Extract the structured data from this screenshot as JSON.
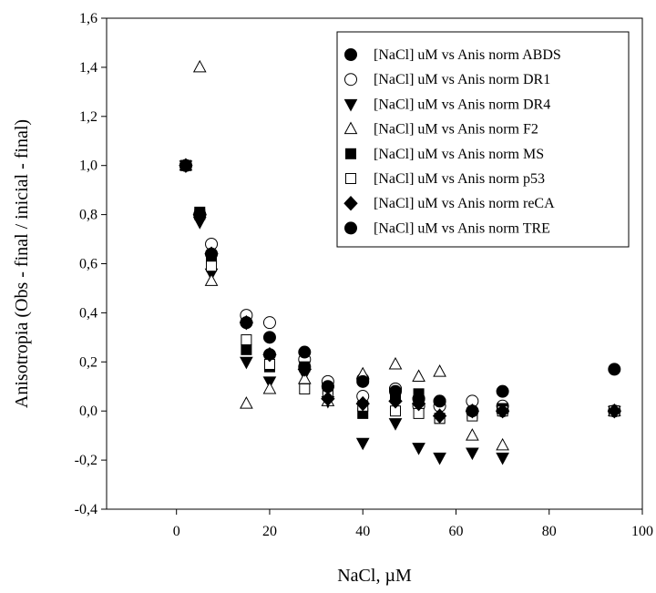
{
  "chart_data": {
    "type": "scatter",
    "xlabel": "NaCl, µM",
    "ylabel": "Anisotropia (Obs - final / inicial - final)",
    "xlim": [
      -15,
      100
    ],
    "ylim": [
      -0.4,
      1.6
    ],
    "xticks": [
      0,
      20,
      40,
      60,
      80,
      100
    ],
    "xtick_labels": [
      "0",
      "20",
      "40",
      "60",
      "80",
      "100"
    ],
    "yticks": [
      -0.4,
      -0.2,
      0.0,
      0.2,
      0.4,
      0.6,
      0.8,
      1.0,
      1.2,
      1.4,
      1.6
    ],
    "ytick_labels": [
      "-0,4",
      "-0,2",
      "0,0",
      "0,2",
      "0,4",
      "0,6",
      "0,8",
      "1,0",
      "1,2",
      "1,4",
      "1,6"
    ],
    "grid": false,
    "legend_position": "top-right",
    "series": [
      {
        "name": "[NaCl] uM vs Anis norm ABDS",
        "marker": "circle-filled",
        "x": [
          2,
          5,
          7.5,
          15,
          20,
          27.5,
          32.5,
          40,
          47,
          52,
          56.5,
          63.5,
          70,
          94
        ],
        "y": [
          1.0,
          0.8,
          0.64,
          0.36,
          0.23,
          0.18,
          0.1,
          0.13,
          0.09,
          0.05,
          0.04,
          0.0,
          0.0,
          0.0
        ]
      },
      {
        "name": "[NaCl] uM vs Anis norm DR1",
        "marker": "circle-open",
        "x": [
          2,
          5,
          7.5,
          15,
          20,
          27.5,
          32.5,
          40,
          47,
          52,
          56.5,
          63.5,
          70,
          94
        ],
        "y": [
          1.0,
          0.8,
          0.68,
          0.39,
          0.36,
          0.21,
          0.12,
          0.06,
          0.09,
          0.02,
          0.02,
          0.04,
          0.02,
          0.0
        ]
      },
      {
        "name": "[NaCl] uM vs Anis norm DR4",
        "marker": "triangle-down-filled",
        "x": [
          2,
          5,
          7.5,
          15,
          20,
          27.5,
          32.5,
          40,
          47,
          52,
          56.5,
          63.5,
          70,
          94
        ],
        "y": [
          1.0,
          0.77,
          0.56,
          0.2,
          0.12,
          0.15,
          0.04,
          -0.13,
          -0.05,
          -0.15,
          -0.19,
          -0.17,
          -0.19,
          0.0
        ]
      },
      {
        "name": "[NaCl] uM vs Anis norm F2",
        "marker": "triangle-up-open",
        "x": [
          2,
          5,
          7.5,
          15,
          20,
          27.5,
          32.5,
          40,
          47,
          52,
          56.5,
          63.5,
          70,
          94
        ],
        "y": [
          1.0,
          1.4,
          0.53,
          0.03,
          0.09,
          0.13,
          0.04,
          0.15,
          0.19,
          0.14,
          0.16,
          -0.1,
          -0.14,
          0.0
        ]
      },
      {
        "name": "[NaCl] uM vs Anis norm MS",
        "marker": "square-filled",
        "x": [
          2,
          5,
          7.5,
          15,
          20,
          27.5,
          32.5,
          40,
          47,
          52,
          56.5,
          63.5,
          70,
          94
        ],
        "y": [
          1.0,
          0.81,
          0.62,
          0.25,
          0.18,
          0.18,
          0.09,
          -0.01,
          0.06,
          0.07,
          -0.03,
          -0.01,
          0.01,
          0.0
        ]
      },
      {
        "name": "[NaCl] uM vs Anis norm p53",
        "marker": "square-open",
        "x": [
          2,
          5,
          7.5,
          15,
          20,
          27.5,
          32.5,
          40,
          47,
          52,
          56.5,
          63.5,
          70,
          94
        ],
        "y": [
          1.0,
          0.8,
          0.59,
          0.29,
          0.19,
          0.09,
          0.07,
          0.02,
          0.0,
          -0.01,
          -0.03,
          -0.02,
          0.0,
          0.0
        ]
      },
      {
        "name": "[NaCl] uM vs Anis norm reCA",
        "marker": "diamond-filled",
        "x": [
          2,
          5,
          7.5,
          15,
          20,
          27.5,
          32.5,
          40,
          47,
          52,
          56.5,
          63.5,
          70,
          94
        ],
        "y": [
          1.0,
          0.8,
          0.64,
          0.36,
          0.23,
          0.17,
          0.05,
          0.03,
          0.04,
          0.03,
          -0.02,
          0.0,
          0.0,
          0.0
        ]
      },
      {
        "name": "[NaCl] uM vs Anis norm TRE",
        "marker": "circle-filled",
        "x": [
          2,
          5,
          7.5,
          15,
          20,
          27.5,
          32.5,
          40,
          47,
          52,
          56.5,
          63.5,
          70,
          94
        ],
        "y": [
          1.0,
          0.8,
          0.64,
          0.36,
          0.3,
          0.24,
          0.1,
          0.12,
          0.08,
          0.05,
          0.04,
          0.0,
          0.08,
          0.17
        ]
      }
    ]
  }
}
